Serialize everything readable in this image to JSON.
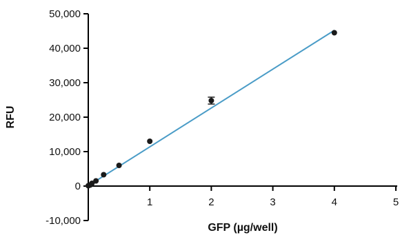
{
  "chart_data": {
    "type": "scatter",
    "title": "",
    "xlabel": "GFP (µg/well)",
    "ylabel": "RFU",
    "xlim": [
      0,
      5
    ],
    "ylim": [
      -10000,
      50000
    ],
    "x_ticks": [
      1,
      2,
      3,
      4,
      5
    ],
    "x_tick_labels": [
      "1",
      "2",
      "3",
      "4",
      "5"
    ],
    "y_ticks": [
      -10000,
      0,
      10000,
      20000,
      30000,
      40000,
      50000
    ],
    "y_tick_labels": [
      "-10,000",
      "0",
      "10,000",
      "20,000",
      "30,000",
      "40,000",
      "50,000"
    ],
    "grid": false,
    "legend": "none",
    "series": [
      {
        "points": [
          {
            "x": 0.0,
            "y": 100
          },
          {
            "x": 0.03,
            "y": 300
          },
          {
            "x": 0.06,
            "y": 800
          },
          {
            "x": 0.125,
            "y": 1500
          },
          {
            "x": 0.25,
            "y": 3300
          },
          {
            "x": 0.5,
            "y": 6000
          },
          {
            "x": 1.0,
            "y": 13000
          },
          {
            "x": 2.0,
            "y": 24800,
            "error": 1000
          },
          {
            "x": 4.0,
            "y": 44500
          }
        ]
      }
    ],
    "fit_line": {
      "x": [
        0.0,
        4.0
      ],
      "y": [
        100,
        45200
      ]
    },
    "colors": {
      "marker": "#1a1a1a",
      "fit_line": "#4a9cc7",
      "axis": "#000000"
    }
  }
}
